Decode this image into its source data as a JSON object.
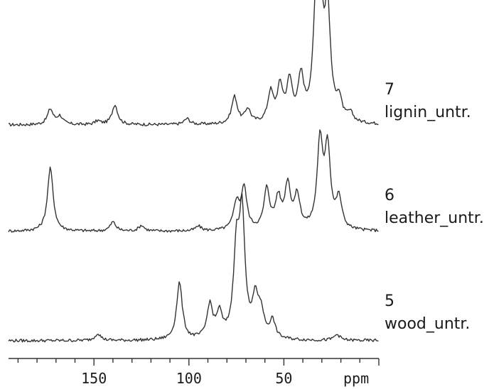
{
  "chart_data": {
    "type": "line",
    "xlabel": "",
    "x_unit": "ppm",
    "x_reversed": true,
    "xlim": [
      195,
      0
    ],
    "x_ticks": [
      150,
      100,
      50
    ],
    "series": [
      {
        "number": "7",
        "name": "lignin_untr.",
        "peaks": [
          {
            "ppm": 173,
            "height": 0.13
          },
          {
            "ppm": 168,
            "height": 0.07
          },
          {
            "ppm": 148,
            "height": 0.03
          },
          {
            "ppm": 139,
            "height": 0.17
          },
          {
            "ppm": 101,
            "height": 0.05
          },
          {
            "ppm": 76,
            "height": 0.23
          },
          {
            "ppm": 69,
            "height": 0.12
          },
          {
            "ppm": 57,
            "height": 0.25
          },
          {
            "ppm": 52,
            "height": 0.29
          },
          {
            "ppm": 47,
            "height": 0.33
          },
          {
            "ppm": 41,
            "height": 0.36
          },
          {
            "ppm": 33,
            "height": 0.8
          },
          {
            "ppm": 31,
            "height": 0.98
          },
          {
            "ppm": 27,
            "height": 0.9
          },
          {
            "ppm": 21,
            "height": 0.17
          },
          {
            "ppm": 15,
            "height": 0.07
          }
        ]
      },
      {
        "number": "6",
        "name": "leather_untr.",
        "peaks": [
          {
            "ppm": 173,
            "height": 0.55
          },
          {
            "ppm": 140,
            "height": 0.08
          },
          {
            "ppm": 125,
            "height": 0.05
          },
          {
            "ppm": 95,
            "height": 0.04
          },
          {
            "ppm": 75,
            "height": 0.23
          },
          {
            "ppm": 71,
            "height": 0.36
          },
          {
            "ppm": 59,
            "height": 0.35
          },
          {
            "ppm": 53,
            "height": 0.26
          },
          {
            "ppm": 48,
            "height": 0.38
          },
          {
            "ppm": 43,
            "height": 0.28
          },
          {
            "ppm": 31,
            "height": 0.74
          },
          {
            "ppm": 27,
            "height": 0.69
          },
          {
            "ppm": 21,
            "height": 0.26
          }
        ]
      },
      {
        "number": "5",
        "name": "wood_untr.",
        "peaks": [
          {
            "ppm": 148,
            "height": 0.06
          },
          {
            "ppm": 105,
            "height": 0.48
          },
          {
            "ppm": 89,
            "height": 0.28
          },
          {
            "ppm": 84,
            "height": 0.2
          },
          {
            "ppm": 75,
            "height": 0.7
          },
          {
            "ppm": 72,
            "height": 1.0
          },
          {
            "ppm": 65,
            "height": 0.32
          },
          {
            "ppm": 62,
            "height": 0.2
          },
          {
            "ppm": 56,
            "height": 0.15
          },
          {
            "ppm": 22,
            "height": 0.05
          }
        ]
      }
    ]
  }
}
